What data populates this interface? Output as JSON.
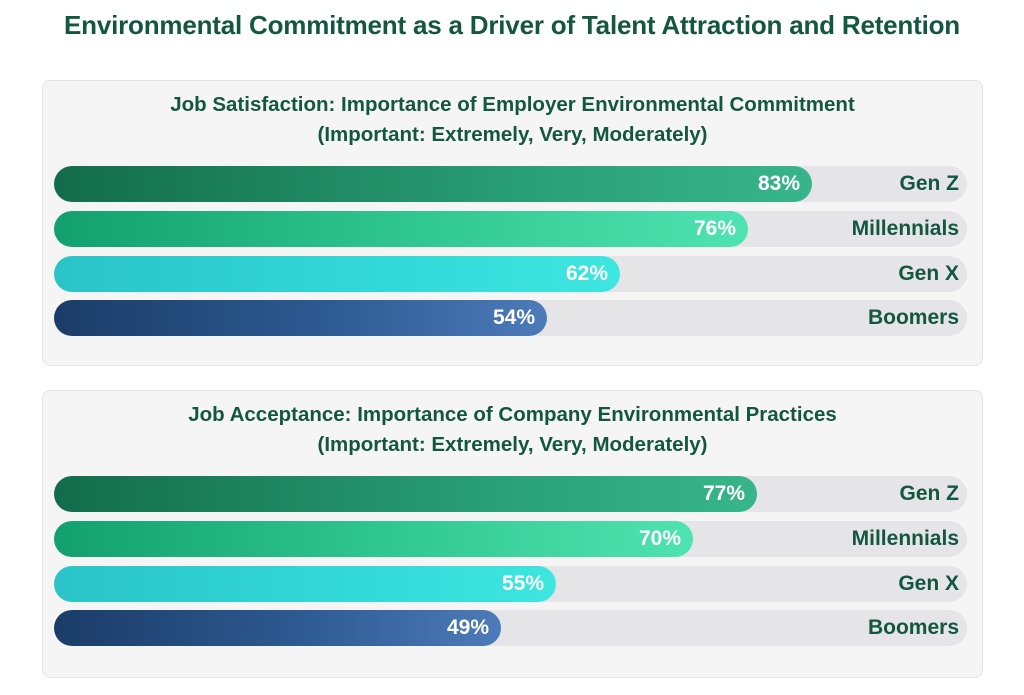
{
  "title": "Environmental Commitment as a Driver of Talent Attraction and Retention",
  "chart_data": [
    {
      "type": "bar",
      "orientation": "horizontal",
      "title": "Job Satisfaction: Importance of Employer Environmental Commitment",
      "subtitle": "(Important: Extremely, Very, Moderately)",
      "categories": [
        "Gen Z",
        "Millennials",
        "Gen X",
        "Boomers"
      ],
      "values": [
        83,
        76,
        62,
        54
      ],
      "value_labels": [
        "83%",
        "76%",
        "62%",
        "54%"
      ],
      "xlim": [
        0,
        100
      ],
      "grid": false
    },
    {
      "type": "bar",
      "orientation": "horizontal",
      "title": "Job Acceptance: Importance of Company Environmental Practices",
      "subtitle": "(Important: Extremely, Very, Moderately)",
      "categories": [
        "Gen Z",
        "Millennials",
        "Gen X",
        "Boomers"
      ],
      "values": [
        77,
        70,
        55,
        49
      ],
      "value_labels": [
        "77%",
        "70%",
        "55%",
        "49%"
      ],
      "xlim": [
        0,
        100
      ],
      "grid": false
    }
  ],
  "colors": {
    "title": "#14573f",
    "track": "#e5e4e7",
    "gen_z": "#2aa179",
    "millennials": "#2fc590",
    "gen_x": "#33d9d8",
    "boomers": "#2d5a92"
  }
}
